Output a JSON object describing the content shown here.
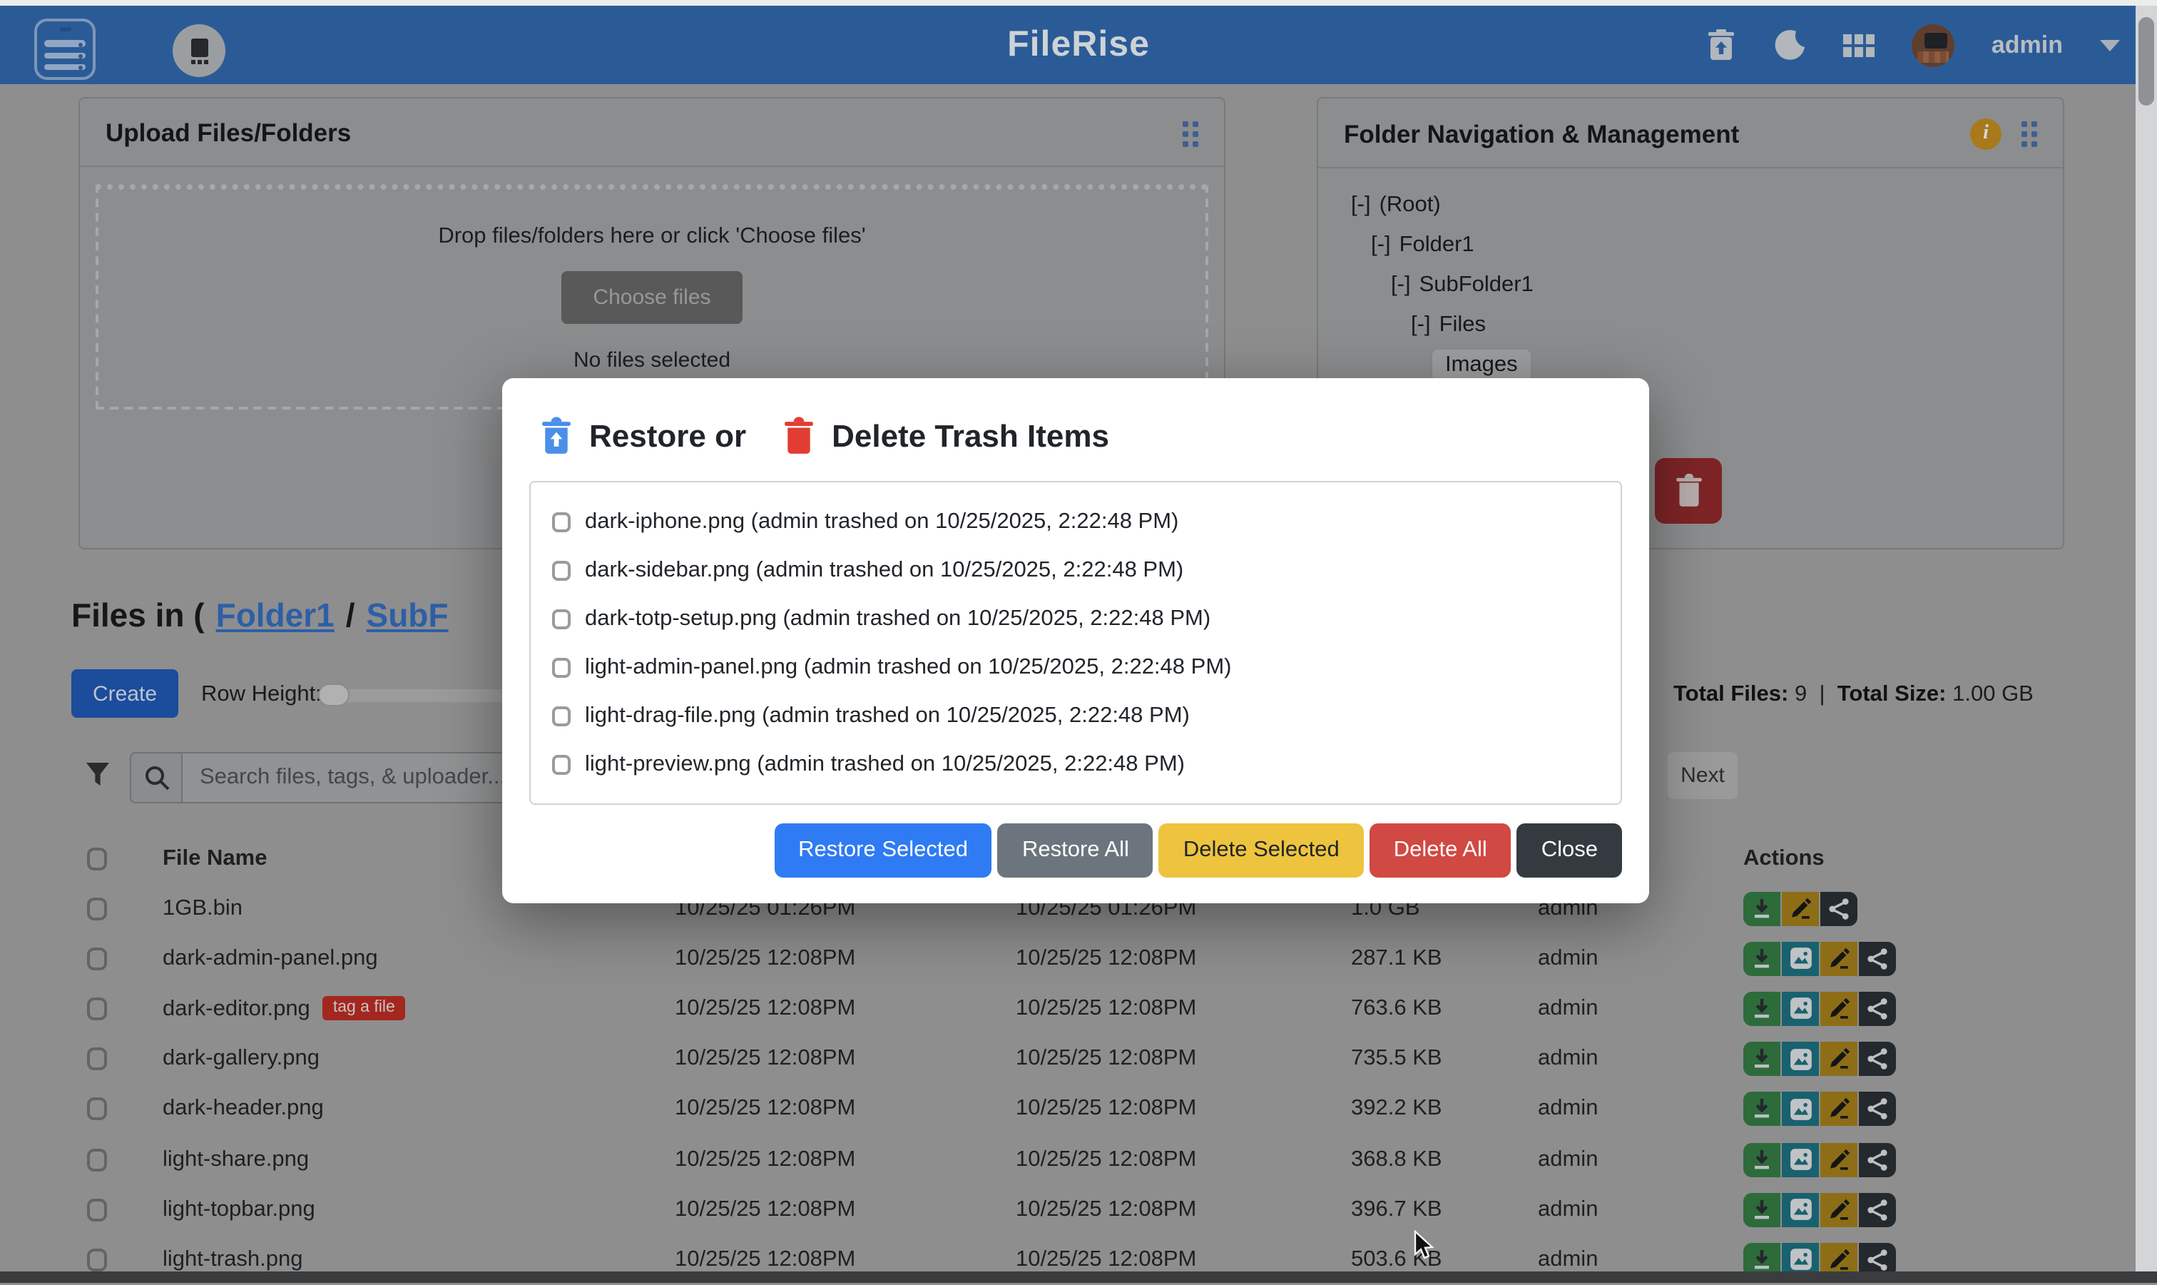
{
  "header": {
    "title": "FileRise",
    "user_label": "admin"
  },
  "upload_card": {
    "title": "Upload Files/Folders",
    "drop_text": "Drop files/folders here or click 'Choose files'",
    "choose_button": "Choose files",
    "no_files_text": "No files selected"
  },
  "folder_card": {
    "title": "Folder Navigation & Management",
    "tree": [
      {
        "prefix": "[-]",
        "label": "(Root)",
        "indent": 0,
        "selected": false
      },
      {
        "prefix": "[-]",
        "label": "Folder1",
        "indent": 1,
        "selected": false
      },
      {
        "prefix": "[-]",
        "label": "SubFolder1",
        "indent": 2,
        "selected": false
      },
      {
        "prefix": "[-]",
        "label": "Files",
        "indent": 3,
        "selected": false
      },
      {
        "prefix": "",
        "label": "Images",
        "indent": 4,
        "selected": true
      }
    ]
  },
  "files_section": {
    "heading_prefix": "Files in (",
    "breadcrumb_links": [
      "Folder1",
      "SubF"
    ],
    "separator": "/",
    "create_button": "Create",
    "row_height_label": "Row Height:",
    "search_placeholder": "Search files, tags, & uploader...",
    "totals": {
      "files_label": "Total Files:",
      "files_value": "9",
      "divider": "|",
      "size_label": "Total Size:",
      "size_value": "1.00 GB"
    },
    "next_button": "Next"
  },
  "table": {
    "headers": {
      "file_name": "File Name",
      "actions": "Actions"
    },
    "rows": [
      {
        "name": "1GB.bin",
        "tag": null,
        "modified": "10/25/25 01:26PM",
        "uploaded": "10/25/25 01:26PM",
        "size": "1.0 GB",
        "uploader": "admin",
        "actions": [
          "download",
          "edit",
          "share"
        ]
      },
      {
        "name": "dark-admin-panel.png",
        "tag": null,
        "modified": "10/25/25 12:08PM",
        "uploaded": "10/25/25 12:08PM",
        "size": "287.1 KB",
        "uploader": "admin",
        "actions": [
          "download",
          "preview",
          "edit",
          "share"
        ]
      },
      {
        "name": "dark-editor.png",
        "tag": "tag a file",
        "modified": "10/25/25 12:08PM",
        "uploaded": "10/25/25 12:08PM",
        "size": "763.6 KB",
        "uploader": "admin",
        "actions": [
          "download",
          "preview",
          "edit",
          "share"
        ]
      },
      {
        "name": "dark-gallery.png",
        "tag": null,
        "modified": "10/25/25 12:08PM",
        "uploaded": "10/25/25 12:08PM",
        "size": "735.5 KB",
        "uploader": "admin",
        "actions": [
          "download",
          "preview",
          "edit",
          "share"
        ]
      },
      {
        "name": "dark-header.png",
        "tag": null,
        "modified": "10/25/25 12:08PM",
        "uploaded": "10/25/25 12:08PM",
        "size": "392.2 KB",
        "uploader": "admin",
        "actions": [
          "download",
          "preview",
          "edit",
          "share"
        ]
      },
      {
        "name": "light-share.png",
        "tag": null,
        "modified": "10/25/25 12:08PM",
        "uploaded": "10/25/25 12:08PM",
        "size": "368.8 KB",
        "uploader": "admin",
        "actions": [
          "download",
          "preview",
          "edit",
          "share"
        ]
      },
      {
        "name": "light-topbar.png",
        "tag": null,
        "modified": "10/25/25 12:08PM",
        "uploaded": "10/25/25 12:08PM",
        "size": "396.7 KB",
        "uploader": "admin",
        "actions": [
          "download",
          "preview",
          "edit",
          "share"
        ]
      },
      {
        "name": "light-trash.png",
        "tag": null,
        "modified": "10/25/25 12:08PM",
        "uploaded": "10/25/25 12:08PM",
        "size": "503.6 KB",
        "uploader": "admin",
        "actions": [
          "download",
          "preview",
          "edit",
          "share"
        ]
      }
    ]
  },
  "modal": {
    "title_restore": "Restore or",
    "title_delete": "Delete Trash Items",
    "items": [
      "dark-iphone.png (admin trashed on 10/25/2025, 2:22:48 PM)",
      "dark-sidebar.png (admin trashed on 10/25/2025, 2:22:48 PM)",
      "dark-totp-setup.png (admin trashed on 10/25/2025, 2:22:48 PM)",
      "light-admin-panel.png (admin trashed on 10/25/2025, 2:22:48 PM)",
      "light-drag-file.png (admin trashed on 10/25/2025, 2:22:48 PM)",
      "light-preview.png (admin trashed on 10/25/2025, 2:22:48 PM)"
    ],
    "buttons": {
      "restore_selected": "Restore Selected",
      "restore_all": "Restore All",
      "delete_selected": "Delete Selected",
      "delete_all": "Delete All",
      "close": "Close"
    }
  },
  "colors": {
    "header_bg": "#2b5b97",
    "primary": "#2f7bf3",
    "secondary": "#6c757d",
    "warning": "#eec33e",
    "danger": "#d04943",
    "dark": "#343a40",
    "link": "#2d5fa5",
    "restore_trash_icon": "#4a8fe8",
    "delete_trash_icon": "#e23d32"
  }
}
